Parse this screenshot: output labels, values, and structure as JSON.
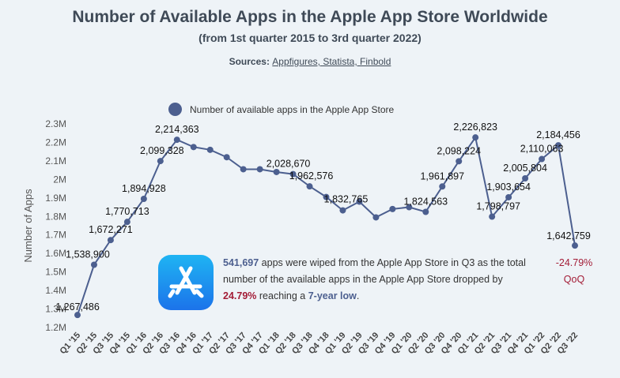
{
  "title": "Number of Available Apps in the Apple App Store Worldwide",
  "subtitle": "(from 1st quarter 2015 to 3rd quarter 2022)",
  "sources": {
    "label": "Sources:",
    "links": "Appfigures, Statista, Finbold"
  },
  "legend": {
    "label": "Number of available apps in the Apple App Store",
    "color": "#4c5f8f"
  },
  "callout": {
    "number": "541,697",
    "text1": " apps were wiped from the Apple App Store in Q3 as the total number of the available apps in the Apple App Store dropped by ",
    "percent": "24.79%",
    "text2": " reaching a ",
    "highlight": "7-year low",
    "text3": "."
  },
  "qoq": {
    "value": "-24.79%",
    "label": "QoQ",
    "color": "#a31c36"
  },
  "chart_data": {
    "type": "line",
    "ylabel": "Number of Apps",
    "ylim": [
      1200000,
      2300000
    ],
    "yticks": [
      {
        "value": 1200000,
        "label": "1.2M"
      },
      {
        "value": 1300000,
        "label": "1.3M"
      },
      {
        "value": 1400000,
        "label": "1.4M"
      },
      {
        "value": 1500000,
        "label": "1.5M"
      },
      {
        "value": 1600000,
        "label": "1.6M"
      },
      {
        "value": 1700000,
        "label": "1.7M"
      },
      {
        "value": 1800000,
        "label": "1.8M"
      },
      {
        "value": 1900000,
        "label": "1.9M"
      },
      {
        "value": 2000000,
        "label": "2M"
      },
      {
        "value": 2100000,
        "label": "2.1M"
      },
      {
        "value": 2200000,
        "label": "2.2M"
      },
      {
        "value": 2300000,
        "label": "2.3M"
      }
    ],
    "categories": [
      "Q1 '15",
      "Q2 '15",
      "Q3 '15",
      "Q4 '15",
      "Q1 '16",
      "Q2 '16",
      "Q3 '16",
      "Q4 '16",
      "Q1 '17",
      "Q2 '17",
      "Q3 '17",
      "Q4 '17",
      "Q1 '18",
      "Q2 '18",
      "Q3 '18",
      "Q4 '18",
      "Q1 '19",
      "Q2 '19",
      "Q3 '19",
      "Q4 '19",
      "Q1 '20",
      "Q2 '20",
      "Q3 '20",
      "Q4 '20",
      "Q1 '21",
      "Q2 '21",
      "Q3 '21",
      "Q4 '21",
      "Q1 '22",
      "Q2 '22",
      "Q3 '22"
    ],
    "series": [
      {
        "name": "Number of available apps in the Apple App Store",
        "color": "#4c5f8f",
        "values": [
          1267486,
          1538900,
          1672271,
          1770713,
          1894928,
          2099328,
          2214363,
          2175000,
          2160000,
          2120000,
          2055000,
          2055000,
          2040000,
          2028670,
          1962576,
          1905000,
          1832765,
          1880000,
          1795000,
          1840000,
          1850000,
          1824563,
          1961897,
          2098224,
          2226823,
          1798797,
          1903654,
          2005804,
          2110063,
          2184456,
          1642759
        ],
        "data_labels": [
          "1,267,486",
          "1,538,900",
          "1,672,271",
          "1,770,713",
          "1,894,928",
          "2,099,328",
          "2,214,363",
          "",
          "",
          "",
          "",
          "",
          "",
          "2,028,670",
          "1,962,576",
          "",
          "1,832,765",
          "",
          "",
          "",
          "",
          "1,824,563",
          "1,961,897",
          "2,098,224",
          "2,226,823",
          "1,798,797",
          "1,903,654",
          "2,005,804",
          "2,110,063",
          "2,184,456",
          "1,642,759"
        ]
      }
    ],
    "grid": false,
    "legend_position": "top"
  }
}
